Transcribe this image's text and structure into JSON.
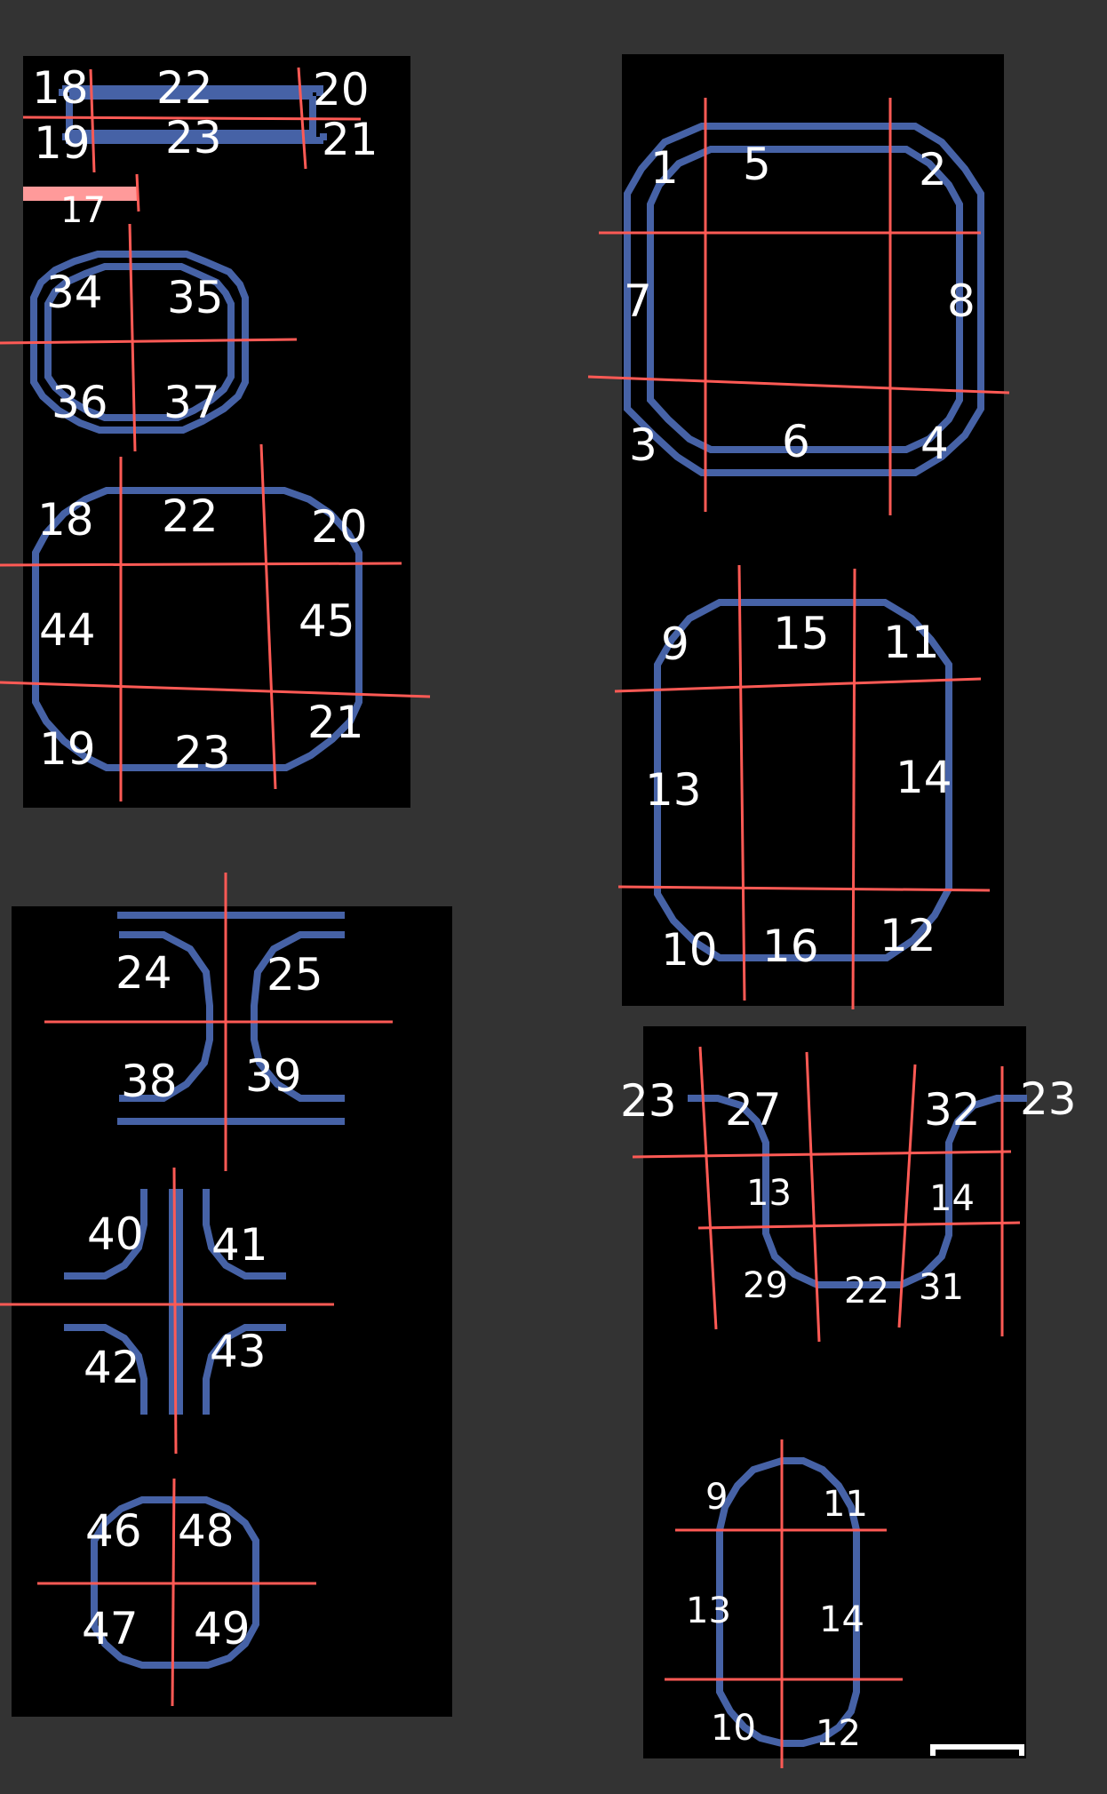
{
  "colors": {
    "background": "#333333",
    "panel": "#000000",
    "shape_stroke": "#4662a6",
    "guide_line": "#ff5a55",
    "label": "#ffffff",
    "marker": "#ff9a9a"
  },
  "panels": {
    "top_left": {
      "strip_labels": [
        "18",
        "22",
        "20",
        "19",
        "23",
        "21"
      ],
      "marker_label": "17",
      "small_circle_labels": [
        "34",
        "35",
        "36",
        "37"
      ],
      "large_rounded_labels": [
        "18",
        "22",
        "20",
        "44",
        "45",
        "19",
        "23",
        "21"
      ]
    },
    "top_right": {
      "octagon_labels": [
        "1",
        "5",
        "2",
        "7",
        "8",
        "3",
        "6",
        "4"
      ],
      "rounded_rect_labels": [
        "9",
        "15",
        "11",
        "13",
        "14",
        "10",
        "16",
        "12"
      ]
    },
    "bottom_left": {
      "i_beam_labels": [
        "24",
        "25",
        "38",
        "39"
      ],
      "cross_labels": [
        "40",
        "41",
        "42",
        "43"
      ],
      "small_circle_labels": [
        "46",
        "48",
        "47",
        "49"
      ]
    },
    "bottom_right": {
      "u_shape_labels": [
        "23",
        "27",
        "32",
        "23",
        "13",
        "14",
        "29",
        "22",
        "31"
      ],
      "capsule_labels": [
        "9",
        "11",
        "13",
        "14",
        "10",
        "12"
      ]
    }
  }
}
